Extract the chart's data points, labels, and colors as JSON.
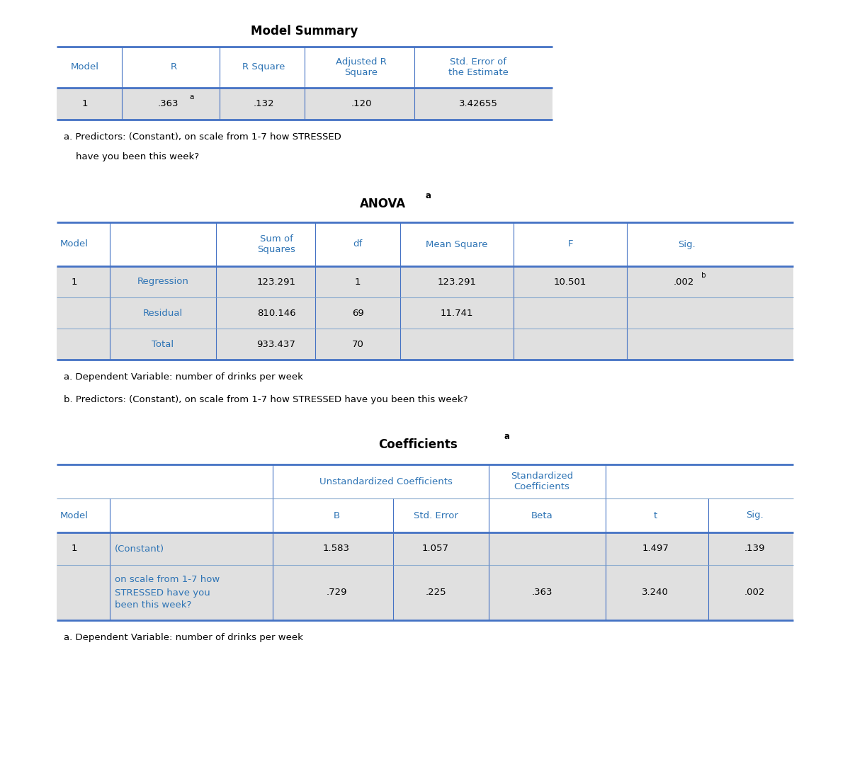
{
  "bg_color": "#ffffff",
  "header_color": "#2E74B5",
  "row_label_color": "#2E74B5",
  "border_color": "#4472C4",
  "shaded_color": "#E0E0E0",
  "model_summary": {
    "title": "Model Summary",
    "footnote_line1": "a. Predictors: (Constant), on scale from 1-7 how STRESSED",
    "footnote_line2": "    have you been this week?"
  },
  "anova": {
    "title": "ANOVA",
    "footnote_a": "a. Dependent Variable: number of drinks per week",
    "footnote_b": "b. Predictors: (Constant), on scale from 1-7 how STRESSED have you been this week?"
  },
  "coefficients": {
    "title": "Coefficients",
    "footnote": "a. Dependent Variable: number of drinks per week"
  }
}
